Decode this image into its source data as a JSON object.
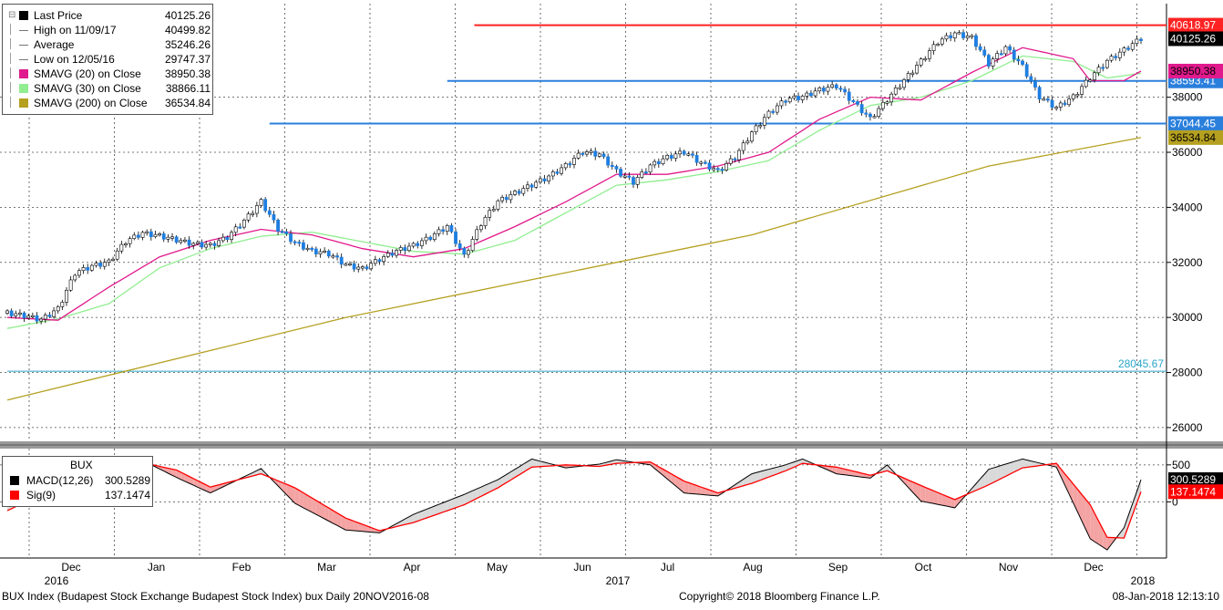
{
  "footer": {
    "description": "BUX Index (Budapest Stock Exchange Budapest Stock Index) bux  Daily 20NOV2016-08",
    "copyright": "Copyright© 2018 Bloomberg Finance L.P.",
    "timestamp": "08-Jan-2018 12:13:10"
  },
  "legend": {
    "items": [
      {
        "label": "Last Price",
        "value": "40125.26",
        "color": "#000000",
        "kind": "square"
      },
      {
        "label": "High on 11/09/17",
        "value": "40499.82",
        "color": "#777777",
        "kind": "icon"
      },
      {
        "label": "Average",
        "value": "35246.26",
        "color": "#777777",
        "kind": "icon"
      },
      {
        "label": "Low on 12/05/16",
        "value": "29747.37",
        "color": "#777777",
        "kind": "icon"
      },
      {
        "label": "SMAVG (20) on Close",
        "value": "38950.38",
        "color": "#e0198c",
        "kind": "square"
      },
      {
        "label": "SMAVG (30) on Close",
        "value": "38866.11",
        "color": "#90ee90",
        "kind": "square"
      },
      {
        "label": "SMAVG (200) on Close",
        "value": "36534.84",
        "color": "#b5a020",
        "kind": "square"
      }
    ]
  },
  "macd_legend": {
    "title": "BUX",
    "items": [
      {
        "label": "MACD(12,26)",
        "value": "300.5289",
        "color": "#000000"
      },
      {
        "label": "Sig(9)",
        "value": "137.1474",
        "color": "#ff0000"
      }
    ]
  },
  "chart_data": [
    {
      "type": "candlestick",
      "title": "BUX",
      "ylim": [
        25500,
        41400
      ],
      "yticks": [
        26000,
        28000,
        30000,
        32000,
        34000,
        36000,
        38000
      ],
      "ytick_labels": [
        "26000",
        "28000",
        "30000",
        "32000",
        "34000",
        "36000",
        "38000"
      ],
      "x_months": [
        "Dec",
        "Jan",
        "Feb",
        "Mar",
        "Apr",
        "May",
        "Jun",
        "Jul",
        "Aug",
        "Sep",
        "Oct",
        "Nov",
        "Dec"
      ],
      "x_years": [
        {
          "label": "2016",
          "month_index": 0
        },
        {
          "label": "2017",
          "month_index": 6
        },
        {
          "label": "2018",
          "month_index": 13
        }
      ],
      "close_points": [
        [
          0,
          30150
        ],
        [
          1,
          30050
        ],
        [
          2,
          29900
        ],
        [
          3,
          30300
        ],
        [
          4,
          31600
        ],
        [
          5,
          31850
        ],
        [
          6,
          32000
        ],
        [
          7,
          32750
        ],
        [
          8,
          33050
        ],
        [
          9,
          32950
        ],
        [
          10,
          32800
        ],
        [
          11,
          32650
        ],
        [
          12,
          32600
        ],
        [
          13,
          32900
        ],
        [
          14,
          33500
        ],
        [
          15,
          34200
        ],
        [
          16,
          33200
        ],
        [
          17,
          32700
        ],
        [
          18,
          32400
        ],
        [
          19,
          32300
        ],
        [
          20,
          31900
        ],
        [
          21,
          31750
        ],
        [
          22,
          32100
        ],
        [
          23,
          32400
        ],
        [
          24,
          32600
        ],
        [
          25,
          32900
        ],
        [
          26,
          33300
        ],
        [
          27,
          32200
        ],
        [
          28,
          33400
        ],
        [
          29,
          34200
        ],
        [
          30,
          34500
        ],
        [
          31,
          34800
        ],
        [
          32,
          35100
        ],
        [
          33,
          35500
        ],
        [
          34,
          36000
        ],
        [
          35,
          35900
        ],
        [
          36,
          35300
        ],
        [
          37,
          34900
        ],
        [
          38,
          35500
        ],
        [
          39,
          35800
        ],
        [
          40,
          36000
        ],
        [
          41,
          35600
        ],
        [
          42,
          35300
        ],
        [
          43,
          35800
        ],
        [
          44,
          36700
        ],
        [
          45,
          37400
        ],
        [
          46,
          37900
        ],
        [
          47,
          38000
        ],
        [
          48,
          38250
        ],
        [
          49,
          38400
        ],
        [
          50,
          37800
        ],
        [
          51,
          37200
        ],
        [
          52,
          37900
        ],
        [
          53,
          38600
        ],
        [
          54,
          39300
        ],
        [
          55,
          40000
        ],
        [
          56,
          40300
        ],
        [
          57,
          40150
        ],
        [
          58,
          39200
        ],
        [
          59,
          39800
        ],
        [
          60,
          39100
        ],
        [
          61,
          38000
        ],
        [
          62,
          37600
        ],
        [
          63,
          38000
        ],
        [
          64,
          38700
        ],
        [
          65,
          39300
        ],
        [
          66,
          39700
        ],
        [
          67,
          40125.26
        ]
      ],
      "sma20_points": [
        [
          0,
          30000
        ],
        [
          3,
          29900
        ],
        [
          6,
          31100
        ],
        [
          9,
          32200
        ],
        [
          12,
          32800
        ],
        [
          15,
          33200
        ],
        [
          18,
          33000
        ],
        [
          21,
          32500
        ],
        [
          24,
          32200
        ],
        [
          27,
          32500
        ],
        [
          30,
          33300
        ],
        [
          33,
          34200
        ],
        [
          36,
          35200
        ],
        [
          39,
          35200
        ],
        [
          42,
          35500
        ],
        [
          45,
          36000
        ],
        [
          48,
          37200
        ],
        [
          51,
          38000
        ],
        [
          54,
          37900
        ],
        [
          57,
          38900
        ],
        [
          60,
          39800
        ],
        [
          63,
          39400
        ],
        [
          64,
          38600
        ],
        [
          66,
          38600
        ],
        [
          67,
          38950.38
        ]
      ],
      "sma30_points": [
        [
          0,
          29600
        ],
        [
          3,
          29950
        ],
        [
          6,
          30500
        ],
        [
          9,
          31800
        ],
        [
          12,
          32500
        ],
        [
          15,
          32950
        ],
        [
          18,
          33100
        ],
        [
          21,
          32750
        ],
        [
          24,
          32400
        ],
        [
          27,
          32300
        ],
        [
          30,
          32800
        ],
        [
          33,
          33800
        ],
        [
          36,
          34800
        ],
        [
          39,
          35000
        ],
        [
          42,
          35300
        ],
        [
          45,
          35700
        ],
        [
          48,
          36800
        ],
        [
          51,
          37700
        ],
        [
          54,
          38000
        ],
        [
          57,
          38600
        ],
        [
          60,
          39500
        ],
        [
          63,
          39300
        ],
        [
          65,
          38700
        ],
        [
          67,
          38866.11
        ]
      ],
      "sma200_points": [
        [
          0,
          27000
        ],
        [
          20,
          30000
        ],
        [
          44,
          33000
        ],
        [
          58,
          35500
        ],
        [
          67,
          36534.84
        ]
      ],
      "horizontal_lines": [
        {
          "value": 40618.97,
          "label": "40618.97",
          "color": "#ff2222",
          "start_index": 27.6
        },
        {
          "value": 38593.41,
          "label": "38593.41",
          "color": "#2a7fdc",
          "start_index": 26.0
        },
        {
          "value": 37044.45,
          "label": "37044.45",
          "color": "#2a7fdc",
          "start_index": 15.5
        },
        {
          "value": 28045.67,
          "label": "28045.67",
          "color": "#2aa6c8",
          "start_index": 0
        }
      ],
      "right_labels": [
        {
          "value": 40125.26,
          "label": "40125.26",
          "color": "#000000"
        },
        {
          "value": 38950.38,
          "label": "38950.38",
          "color": "#e0198c"
        },
        {
          "value": 36534.84,
          "label": "36534.84",
          "color": "#b5a020"
        }
      ]
    },
    {
      "type": "line",
      "title": "BUX",
      "ylim": [
        -760,
        720
      ],
      "yticks": [
        0,
        500
      ],
      "ytick_labels": [
        "0",
        "500"
      ],
      "series": [
        {
          "name": "MACD(12,26)",
          "color": "#000000",
          "points": [
            [
              0,
              -50
            ],
            [
              2,
              200
            ],
            [
              5,
              500
            ],
            [
              8,
              560
            ],
            [
              10,
              330
            ],
            [
              12,
              120
            ],
            [
              15,
              450
            ],
            [
              17,
              -20
            ],
            [
              20,
              -380
            ],
            [
              22,
              -420
            ],
            [
              24,
              -170
            ],
            [
              27,
              100
            ],
            [
              29,
              300
            ],
            [
              31,
              580
            ],
            [
              33,
              460
            ],
            [
              35,
              510
            ],
            [
              36,
              570
            ],
            [
              38,
              500
            ],
            [
              40,
              120
            ],
            [
              42,
              80
            ],
            [
              44,
              380
            ],
            [
              46,
              500
            ],
            [
              47,
              580
            ],
            [
              49,
              380
            ],
            [
              51,
              320
            ],
            [
              52,
              500
            ],
            [
              54,
              10
            ],
            [
              56,
              -80
            ],
            [
              58,
              440
            ],
            [
              60,
              580
            ],
            [
              62,
              470
            ],
            [
              64,
              -500
            ],
            [
              65,
              -650
            ],
            [
              66,
              -350
            ],
            [
              67,
              300.5289
            ]
          ]
        },
        {
          "name": "Sig(9)",
          "color": "#ff0000",
          "points": [
            [
              0,
              -120
            ],
            [
              2,
              100
            ],
            [
              5,
              420
            ],
            [
              8,
              530
            ],
            [
              10,
              430
            ],
            [
              12,
              200
            ],
            [
              15,
              380
            ],
            [
              17,
              190
            ],
            [
              20,
              -220
            ],
            [
              22,
              -390
            ],
            [
              24,
              -280
            ],
            [
              27,
              -40
            ],
            [
              29,
              190
            ],
            [
              31,
              470
            ],
            [
              33,
              500
            ],
            [
              35,
              480
            ],
            [
              36,
              520
            ],
            [
              38,
              540
            ],
            [
              40,
              280
            ],
            [
              42,
              120
            ],
            [
              44,
              250
            ],
            [
              46,
              420
            ],
            [
              47,
              520
            ],
            [
              49,
              470
            ],
            [
              51,
              360
            ],
            [
              52,
              420
            ],
            [
              54,
              220
            ],
            [
              56,
              30
            ],
            [
              58,
              230
            ],
            [
              60,
              460
            ],
            [
              62,
              520
            ],
            [
              64,
              -40
            ],
            [
              65,
              -480
            ],
            [
              66,
              -490
            ],
            [
              67,
              137.1474
            ]
          ]
        }
      ]
    }
  ]
}
